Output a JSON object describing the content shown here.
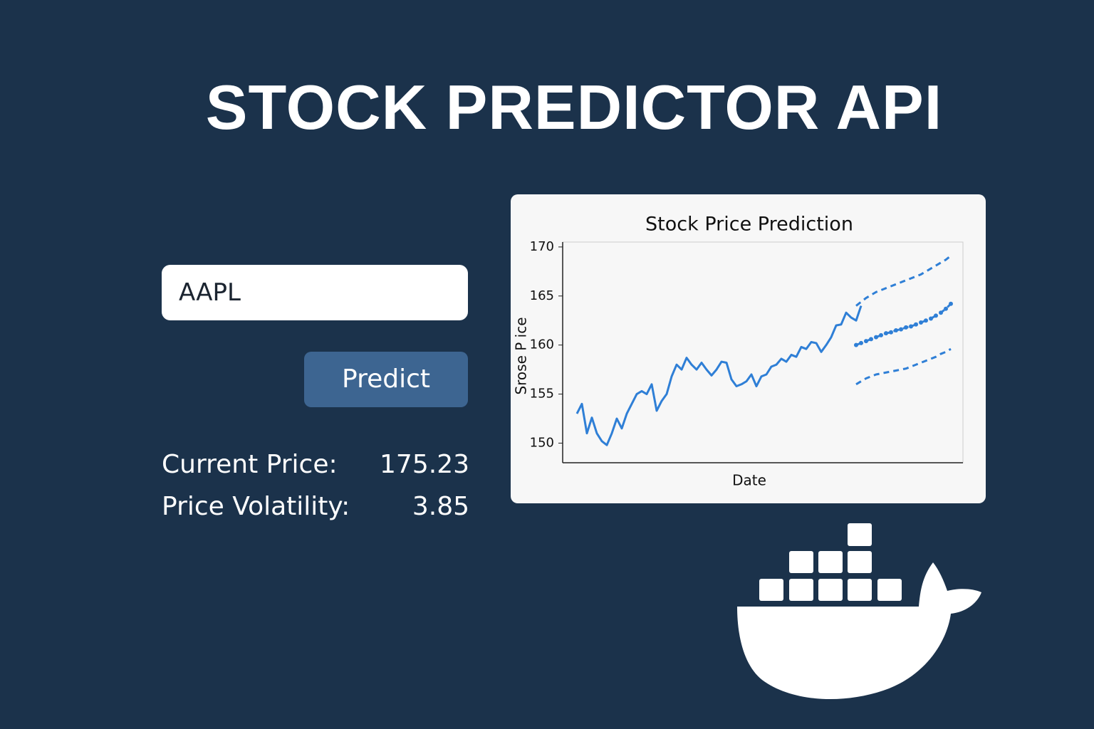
{
  "header": {
    "title": "STOCK PREDICTOR API"
  },
  "form": {
    "ticker": "AAPL",
    "button": "Predict"
  },
  "stats": [
    {
      "label": "Current Price:",
      "value": "175.23"
    },
    {
      "label": "Price Volatility:",
      "value": "3.85"
    }
  ],
  "chart_data": {
    "type": "line",
    "title": "Stock Price Prediction",
    "xlabel": "Date",
    "ylabel": "Srose P ice",
    "ylim": [
      148,
      170.5
    ],
    "yticks": [
      150,
      155,
      160,
      165,
      170
    ],
    "series": [
      {
        "color": "#2f7fd6",
        "style": "solid",
        "markers": false,
        "values": [
          153,
          154,
          151,
          152.6,
          151,
          150.2,
          149.8,
          151,
          152.5,
          151.5,
          153,
          154,
          155,
          155.3,
          155,
          156,
          153.3,
          154.3,
          155,
          156.8,
          158,
          157.5,
          158.7,
          158,
          157.5,
          158.2,
          157.5,
          156.9,
          157.5,
          158.3,
          158.2,
          156.5,
          155.8,
          156,
          156.3,
          157,
          155.8,
          156.8,
          157,
          157.8,
          158,
          158.6,
          158.3,
          159,
          158.8,
          159.8,
          159.6,
          160.3,
          160.2,
          159.3,
          160,
          160.8,
          162,
          162.1,
          163.3,
          162.8,
          162.5,
          164,
          null,
          null,
          null,
          null,
          null,
          null,
          null,
          null,
          null,
          null,
          null,
          null,
          null,
          null,
          null,
          null,
          null,
          null
        ]
      },
      {
        "color": "#2f7fd6",
        "style": "dashed",
        "markers": true,
        "values": [
          null,
          null,
          null,
          null,
          null,
          null,
          null,
          null,
          null,
          null,
          null,
          null,
          null,
          null,
          null,
          null,
          null,
          null,
          null,
          null,
          null,
          null,
          null,
          null,
          null,
          null,
          null,
          null,
          null,
          null,
          null,
          null,
          null,
          null,
          null,
          null,
          null,
          null,
          null,
          null,
          null,
          null,
          null,
          null,
          null,
          null,
          null,
          null,
          null,
          null,
          null,
          null,
          null,
          null,
          null,
          null,
          160,
          160.2,
          160.4,
          160.6,
          160.8,
          161,
          161.2,
          161.3,
          161.5,
          161.6,
          161.8,
          161.9,
          162.1,
          162.3,
          162.5,
          162.7,
          163,
          163.3,
          163.7,
          164.2
        ]
      },
      {
        "color": "#2f7fd6",
        "style": "dashed",
        "markers": false,
        "values": [
          null,
          null,
          null,
          null,
          null,
          null,
          null,
          null,
          null,
          null,
          null,
          null,
          null,
          null,
          null,
          null,
          null,
          null,
          null,
          null,
          null,
          null,
          null,
          null,
          null,
          null,
          null,
          null,
          null,
          null,
          null,
          null,
          null,
          null,
          null,
          null,
          null,
          null,
          null,
          null,
          null,
          null,
          null,
          null,
          null,
          null,
          null,
          null,
          null,
          null,
          null,
          null,
          null,
          null,
          null,
          null,
          164,
          164.4,
          164.8,
          165.1,
          165.4,
          165.6,
          165.8,
          166,
          166.2,
          166.4,
          166.6,
          166.8,
          167,
          167.2,
          167.5,
          167.8,
          168.1,
          168.4,
          168.7,
          169.1
        ]
      },
      {
        "color": "#2f7fd6",
        "style": "dashed",
        "markers": false,
        "values": [
          null,
          null,
          null,
          null,
          null,
          null,
          null,
          null,
          null,
          null,
          null,
          null,
          null,
          null,
          null,
          null,
          null,
          null,
          null,
          null,
          null,
          null,
          null,
          null,
          null,
          null,
          null,
          null,
          null,
          null,
          null,
          null,
          null,
          null,
          null,
          null,
          null,
          null,
          null,
          null,
          null,
          null,
          null,
          null,
          null,
          null,
          null,
          null,
          null,
          null,
          null,
          null,
          null,
          null,
          null,
          null,
          156,
          156.3,
          156.6,
          156.8,
          157,
          157.1,
          157.2,
          157.3,
          157.4,
          157.5,
          157.6,
          157.8,
          158,
          158.2,
          158.4,
          158.6,
          158.8,
          159.1,
          159.3,
          159.6
        ]
      }
    ]
  }
}
